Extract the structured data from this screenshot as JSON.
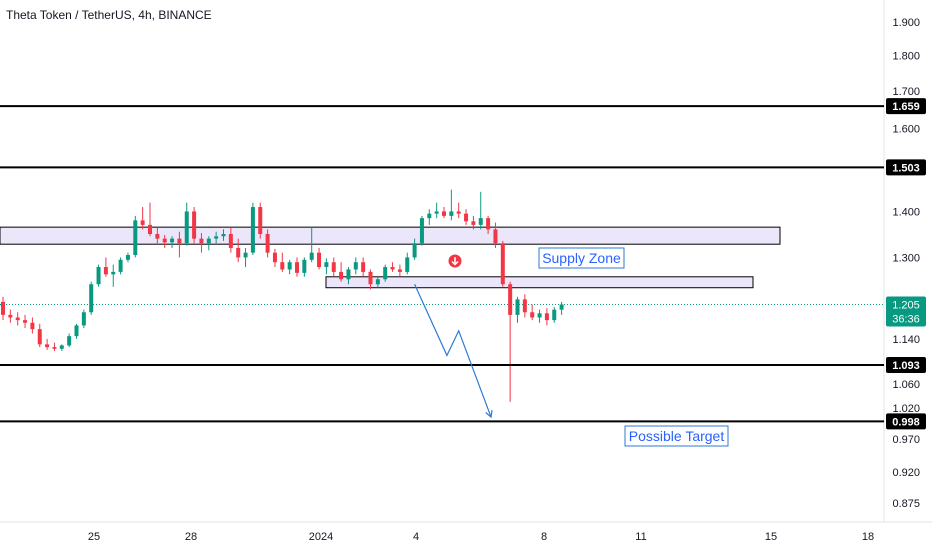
{
  "title": "Theta Token / TetherUS, 4h, BINANCE",
  "colors": {
    "up": "#089981",
    "down": "#f23645",
    "level_line": "#000000",
    "zone_fill": "#ece6fb",
    "zone_stroke": "#000000",
    "projection": "#2f7ad6",
    "annotation_text": "#2962ff",
    "current_price_line": "#089981",
    "grid_text": "#131722"
  },
  "chart_data": {
    "type": "candlestick",
    "title": "Theta Token / TetherUS, 4h, BINANCE",
    "symbol": "THETAUSDT",
    "timeframe": "4h",
    "exchange": "BINANCE",
    "ylim": [
      0.845,
      1.95
    ],
    "y_scale": "log",
    "x_tick_labels": [
      "25",
      "28",
      "2024",
      "4",
      "8",
      "11",
      "15",
      "18"
    ],
    "y_tick_labels": [
      "1.900",
      "1.800",
      "1.700",
      "1.600",
      "1.400",
      "1.300",
      "1.140",
      "1.060",
      "1.020",
      "0.970",
      "0.920",
      "0.875"
    ],
    "horizontal_levels": [
      {
        "price": 1.659,
        "label": "1.659"
      },
      {
        "price": 1.503,
        "label": "1.503"
      },
      {
        "price": 1.093,
        "label": "1.093"
      },
      {
        "price": 0.998,
        "label": "0.998"
      }
    ],
    "current_price": {
      "price": 1.205,
      "label": "1.205",
      "countdown": "36:36"
    },
    "zones": [
      {
        "name": "upper-zone",
        "top": 1.365,
        "bottom": 1.328
      },
      {
        "name": "supply-zone",
        "top": 1.26,
        "bottom": 1.238
      }
    ],
    "annotations": [
      {
        "text": "Supply Zone"
      },
      {
        "text": "Possible Target"
      }
    ],
    "projection_path": [
      {
        "x": 56.0,
        "price": 1.245
      },
      {
        "x": 60.4,
        "price": 1.11
      },
      {
        "x": 62.0,
        "price": 1.155
      },
      {
        "x": 66.4,
        "price": 1.005
      }
    ],
    "candles": [
      [
        1.21,
        1.22,
        1.175,
        1.185
      ],
      [
        1.185,
        1.195,
        1.17,
        1.18
      ],
      [
        1.18,
        1.19,
        1.165,
        1.175
      ],
      [
        1.175,
        1.185,
        1.16,
        1.17
      ],
      [
        1.17,
        1.18,
        1.15,
        1.158
      ],
      [
        1.158,
        1.168,
        1.125,
        1.13
      ],
      [
        1.13,
        1.14,
        1.12,
        1.125
      ],
      [
        1.125,
        1.133,
        1.118,
        1.122
      ],
      [
        1.122,
        1.13,
        1.118,
        1.128
      ],
      [
        1.128,
        1.15,
        1.125,
        1.145
      ],
      [
        1.145,
        1.168,
        1.14,
        1.165
      ],
      [
        1.165,
        1.195,
        1.16,
        1.19
      ],
      [
        1.19,
        1.25,
        1.185,
        1.245
      ],
      [
        1.245,
        1.285,
        1.24,
        1.28
      ],
      [
        1.28,
        1.3,
        1.26,
        1.265
      ],
      [
        1.265,
        1.285,
        1.24,
        1.27
      ],
      [
        1.27,
        1.3,
        1.265,
        1.295
      ],
      [
        1.295,
        1.31,
        1.29,
        1.305
      ],
      [
        1.305,
        1.39,
        1.3,
        1.38
      ],
      [
        1.38,
        1.41,
        1.36,
        1.37
      ],
      [
        1.37,
        1.42,
        1.345,
        1.35
      ],
      [
        1.35,
        1.365,
        1.33,
        1.34
      ],
      [
        1.34,
        1.348,
        1.32,
        1.332
      ],
      [
        1.332,
        1.345,
        1.32,
        1.34
      ],
      [
        1.34,
        1.355,
        1.3,
        1.33
      ],
      [
        1.33,
        1.42,
        1.325,
        1.4
      ],
      [
        1.4,
        1.41,
        1.33,
        1.34
      ],
      [
        1.34,
        1.352,
        1.31,
        1.33
      ],
      [
        1.33,
        1.345,
        1.315,
        1.34
      ],
      [
        1.34,
        1.355,
        1.33,
        1.345
      ],
      [
        1.345,
        1.36,
        1.335,
        1.35
      ],
      [
        1.35,
        1.365,
        1.31,
        1.32
      ],
      [
        1.32,
        1.34,
        1.29,
        1.3
      ],
      [
        1.3,
        1.32,
        1.28,
        1.31
      ],
      [
        1.31,
        1.42,
        1.305,
        1.41
      ],
      [
        1.41,
        1.42,
        1.34,
        1.35
      ],
      [
        1.35,
        1.36,
        1.3,
        1.31
      ],
      [
        1.31,
        1.318,
        1.28,
        1.29
      ],
      [
        1.29,
        1.31,
        1.27,
        1.275
      ],
      [
        1.275,
        1.295,
        1.265,
        1.29
      ],
      [
        1.29,
        1.3,
        1.26,
        1.268
      ],
      [
        1.268,
        1.3,
        1.26,
        1.295
      ],
      [
        1.295,
        1.365,
        1.29,
        1.31
      ],
      [
        1.31,
        1.32,
        1.275,
        1.28
      ],
      [
        1.28,
        1.298,
        1.265,
        1.29
      ],
      [
        1.29,
        1.3,
        1.26,
        1.27
      ],
      [
        1.27,
        1.29,
        1.25,
        1.255
      ],
      [
        1.255,
        1.28,
        1.245,
        1.275
      ],
      [
        1.275,
        1.3,
        1.265,
        1.29
      ],
      [
        1.29,
        1.3,
        1.26,
        1.27
      ],
      [
        1.27,
        1.275,
        1.235,
        1.245
      ],
      [
        1.245,
        1.262,
        1.238,
        1.255
      ],
      [
        1.255,
        1.285,
        1.25,
        1.28
      ],
      [
        1.28,
        1.29,
        1.27,
        1.275
      ],
      [
        1.275,
        1.285,
        1.26,
        1.27
      ],
      [
        1.27,
        1.31,
        1.265,
        1.3
      ]
    ],
    "candles2": [
      [
        1.3,
        1.34,
        1.295,
        1.33
      ],
      [
        1.33,
        1.39,
        1.325,
        1.385
      ],
      [
        1.385,
        1.405,
        1.37,
        1.395
      ],
      [
        1.395,
        1.42,
        1.385,
        1.4
      ],
      [
        1.4,
        1.41,
        1.385,
        1.39
      ],
      [
        1.39,
        1.45,
        1.38,
        1.4
      ],
      [
        1.4,
        1.42,
        1.385,
        1.395
      ],
      [
        1.395,
        1.405,
        1.37,
        1.378
      ],
      [
        1.378,
        1.39,
        1.36,
        1.37
      ],
      [
        1.37,
        1.445,
        1.36,
        1.385
      ],
      [
        1.385,
        1.39,
        1.35,
        1.36
      ],
      [
        1.36,
        1.375,
        1.32,
        1.33
      ],
      [
        1.33,
        1.335,
        1.24,
        1.245
      ],
      [
        1.245,
        1.25,
        1.03,
        1.185
      ],
      [
        1.185,
        1.22,
        1.17,
        1.215
      ],
      [
        1.215,
        1.225,
        1.18,
        1.19
      ],
      [
        1.19,
        1.205,
        1.175,
        1.18
      ],
      [
        1.18,
        1.195,
        1.17,
        1.188
      ],
      [
        1.188,
        1.198,
        1.165,
        1.175
      ],
      [
        1.175,
        1.2,
        1.17,
        1.195
      ],
      [
        1.195,
        1.21,
        1.185,
        1.205
      ]
    ]
  }
}
